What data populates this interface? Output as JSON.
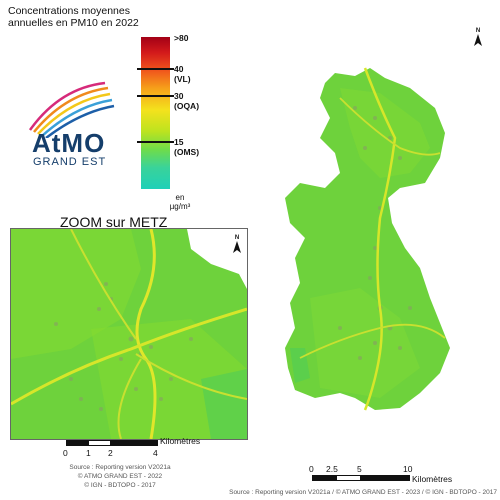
{
  "title": "Concentrations moyennes annuelles en PM10 en 2022",
  "legend": {
    "labels": [
      {
        "value": ">80",
        "sub": ""
      },
      {
        "value": "40",
        "sub": "(VL)"
      },
      {
        "value": "30",
        "sub": "(OQA)"
      },
      {
        "value": "15",
        "sub": "(OMS)"
      }
    ],
    "unit_line1": "en",
    "unit_line2": "µg/m³"
  },
  "logo": {
    "name_a": "AtMO",
    "sub": "GRAND EST"
  },
  "zoom": {
    "title": "ZOOM sur METZ"
  },
  "scale_zoom": {
    "label": "Kilomètres",
    "ticks": [
      "0",
      "1",
      "2",
      "4"
    ]
  },
  "scale_main": {
    "label": "Kilomètres",
    "ticks": [
      "0",
      "2.5",
      "5",
      "10"
    ]
  },
  "source_zoom": [
    "Source : Reporting version V2021a",
    "© ATMO GRAND EST - 2022",
    "© IGN - BDTOPO - 2017"
  ],
  "source_main": "Source : Reporting version V2021a / © ATMO GRAND EST - 2023 / © IGN - BDTOPO - 2017",
  "north": "N",
  "colors": {
    "map_green": "#6ed23c",
    "road_yellow": "#d6e62a",
    "logo_blue": "#153e6b"
  }
}
